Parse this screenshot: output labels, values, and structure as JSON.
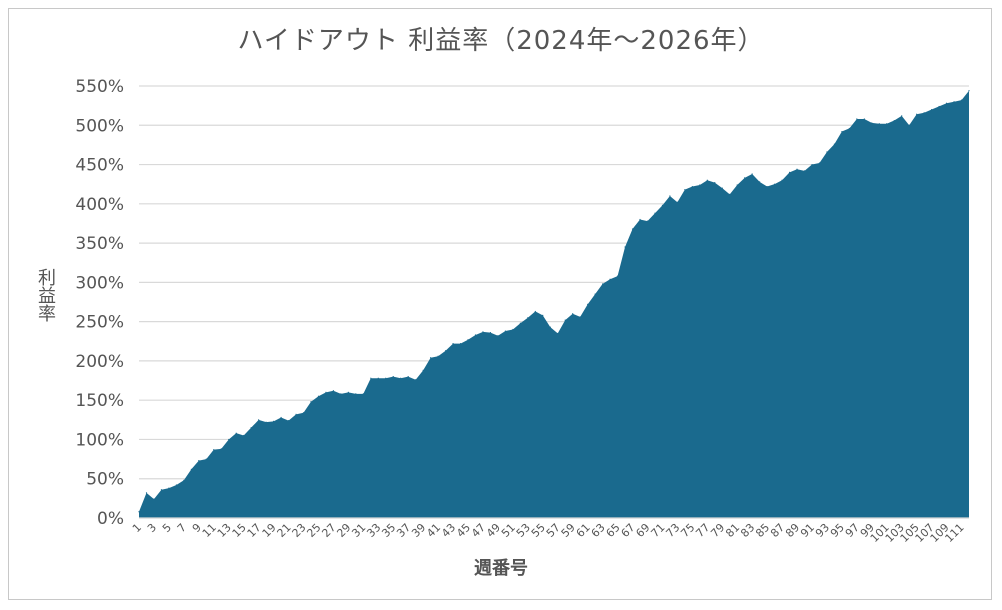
{
  "chart_data": {
    "type": "area",
    "title": "ハイドアウト 利益率（2024年～2026年）",
    "xlabel": "週番号",
    "ylabel": "利益率",
    "ylim": [
      0,
      550
    ],
    "y_ticks": [
      "0%",
      "50%",
      "100%",
      "150%",
      "200%",
      "250%",
      "300%",
      "350%",
      "400%",
      "450%",
      "500%",
      "550%"
    ],
    "grid": true,
    "legend": "none",
    "colors": {
      "area": "#1a6a8e",
      "grid": "#d9d9d9",
      "text": "#555555"
    },
    "x": [
      1,
      2,
      3,
      4,
      5,
      6,
      7,
      8,
      9,
      10,
      11,
      12,
      13,
      14,
      15,
      16,
      17,
      18,
      19,
      20,
      21,
      22,
      23,
      24,
      25,
      26,
      27,
      28,
      29,
      30,
      31,
      32,
      33,
      34,
      35,
      36,
      37,
      38,
      39,
      40,
      41,
      42,
      43,
      44,
      45,
      46,
      47,
      48,
      49,
      50,
      51,
      52,
      53,
      54,
      55,
      56,
      57,
      58,
      59,
      60,
      61,
      62,
      63,
      64,
      65,
      66,
      67,
      68,
      69,
      70,
      71,
      72,
      73,
      74,
      75,
      76,
      77,
      78,
      79,
      80,
      81,
      82,
      83,
      84,
      85,
      86,
      87,
      88,
      89,
      90,
      91,
      92,
      93,
      94,
      95,
      96,
      97,
      98,
      99,
      100,
      101,
      102,
      103,
      104,
      105,
      106,
      107,
      108,
      109,
      110,
      111,
      112
    ],
    "values": [
      8,
      32,
      24,
      36,
      38,
      42,
      48,
      62,
      73,
      75,
      87,
      88,
      100,
      108,
      105,
      115,
      125,
      122,
      123,
      128,
      124,
      132,
      134,
      148,
      155,
      160,
      162,
      158,
      160,
      158,
      158,
      178,
      178,
      178,
      180,
      178,
      180,
      176,
      188,
      204,
      206,
      213,
      222,
      222,
      227,
      233,
      237,
      236,
      232,
      238,
      240,
      248,
      255,
      263,
      258,
      243,
      235,
      252,
      260,
      256,
      272,
      285,
      298,
      304,
      308,
      345,
      368,
      380,
      378,
      388,
      398,
      410,
      402,
      418,
      422,
      424,
      430,
      427,
      420,
      412,
      424,
      433,
      438,
      428,
      422,
      425,
      430,
      440,
      444,
      442,
      450,
      452,
      466,
      476,
      492,
      496,
      508,
      508,
      503,
      502,
      502,
      506,
      512,
      500,
      514,
      516,
      520,
      524,
      528,
      530,
      532,
      544
    ]
  }
}
